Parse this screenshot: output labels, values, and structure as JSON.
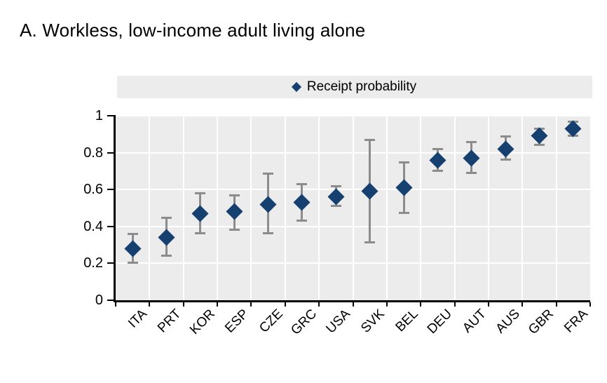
{
  "page": {
    "title": "A. Workless, low-income adult living alone"
  },
  "legend": {
    "label": "Receipt probability"
  },
  "chart_data": {
    "type": "scatter",
    "title": "A. Workless, low-income adult living alone",
    "marker": "diamond",
    "error_bars": true,
    "legend_entries": [
      "Receipt probability"
    ],
    "legend_position": "top",
    "grid": true,
    "xlabel": "",
    "ylabel": "",
    "ylim": [
      0,
      1
    ],
    "yticks": [
      0,
      0.2,
      0.4,
      0.6,
      0.8,
      1
    ],
    "ytick_labels": [
      "0",
      "0.2",
      "0.4",
      "0.6",
      "0.8",
      "1"
    ],
    "categories": [
      "ITA",
      "PRT",
      "KOR",
      "ESP",
      "CZE",
      "GRC",
      "USA",
      "SVK",
      "BEL",
      "DEU",
      "AUT",
      "AUS",
      "GBR",
      "FRA"
    ],
    "series": [
      {
        "name": "Receipt probability",
        "values": [
          0.28,
          0.34,
          0.47,
          0.48,
          0.52,
          0.53,
          0.56,
          0.59,
          0.61,
          0.76,
          0.77,
          0.82,
          0.89,
          0.93
        ],
        "ci_low": [
          0.2,
          0.24,
          0.36,
          0.38,
          0.36,
          0.43,
          0.51,
          0.31,
          0.47,
          0.7,
          0.69,
          0.76,
          0.84,
          0.89
        ],
        "ci_high": [
          0.36,
          0.45,
          0.58,
          0.57,
          0.69,
          0.63,
          0.62,
          0.87,
          0.75,
          0.82,
          0.86,
          0.89,
          0.93,
          0.97
        ]
      }
    ]
  },
  "colors": {
    "marker": "#15406F",
    "error_bar": "#8C8C8C",
    "plot_bg": "#ECECEC",
    "legend_bg": "#ECECEC",
    "gridline": "#FFFFFF",
    "axis": "#000000",
    "text": "#000000"
  }
}
